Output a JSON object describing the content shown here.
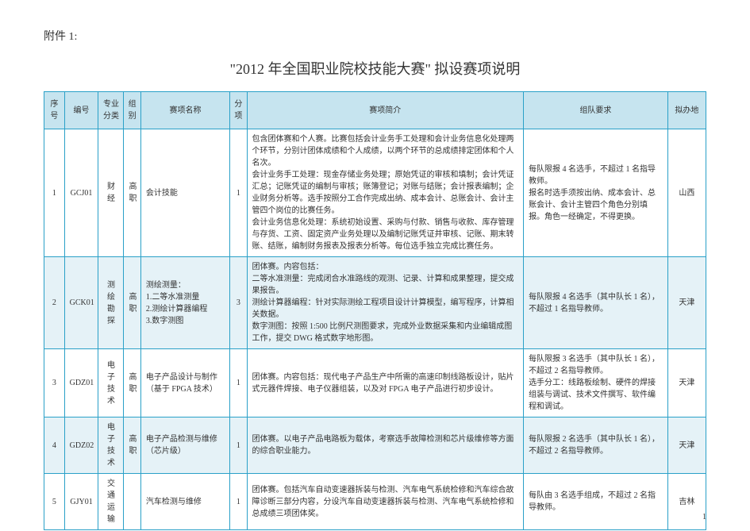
{
  "appendix_label": "附件 1:",
  "main_title": "\"2012 年全国职业院校技能大赛\" 拟设赛项说明",
  "page_number": "1",
  "headers": {
    "seq": "序号",
    "code": "编号",
    "category": "专业分类",
    "group": "组别",
    "name": "赛项名称",
    "sub": "分项",
    "intro": "赛项简介",
    "team": "组队要求",
    "location": "拟办地"
  },
  "rows": [
    {
      "highlight": false,
      "seq": "1",
      "code": "GCJ01",
      "category": "财经",
      "group": "高职",
      "name": "会计技能",
      "sub": "1",
      "intro": "包含团体赛和个人赛。比赛包括会计业务手工处理和会计业务信息化处理两个环节，分别计团体成绩和个人成绩，以两个环节的总成绩排定团体和个人名次。\n会计业务手工处理：现金存储业务处理；原始凭证的审核和填制；会计凭证汇总；记账凭证的编制与审核；账簿登记；对账与结账；会计报表编制；企业财务分析等。选手按照分工合作完成出纳、成本会计、总账会计、会计主管四个岗位的比赛任务。\n会计业务信息化处理：系统初始设置、采购与付款、销售与收款、库存管理与存货、工资、固定资产业务处理以及编制记账凭证并审核、记账、期末转账、结账，编制财务报表及报表分析等。每位选手独立完成比赛任务。",
      "team": "每队限报 4 名选手，不超过 1 名指导教师。\n报名时选手须按出纳、成本会计、总账会计、会计主管四个角色分别填报。角色一经确定，不得更换。",
      "location": "山西"
    },
    {
      "highlight": true,
      "seq": "2",
      "code": "GCK01",
      "category": "测绘勘探",
      "group": "高职",
      "name": "测绘测量：\n1.二等水准测量\n2.测绘计算器编程\n3.数字测图",
      "sub": "3",
      "intro": "团体赛。内容包括：\n二等水准测量：完成闭合水准路线的观测、记录、计算和成果整理，提交成果报告。\n测绘计算器编程：针对实际测绘工程项目设计计算模型，编写程序，计算相关数据。\n数字测图：按照 1:500 比例尺测图要求，完成外业数据采集和内业编辑成图工作，提交 DWG 格式数字地形图。",
      "team": "每队限报 4 名选手（其中队长 1 名），不超过 1 名指导教师。",
      "location": "天津"
    },
    {
      "highlight": false,
      "seq": "3",
      "code": "GDZ01",
      "category": "电子技术",
      "group": "高职",
      "name": "电子产品设计与制作（基于 FPGA 技术）",
      "sub": "1",
      "intro": "团体赛。内容包括：现代电子产品生产中所需的高速印制线路板设计，贴片式元器件焊接、电子仪器组装，以及对 FPGA 电子产品进行初步设计。",
      "team": "每队限报 3 名选手（其中队长 1 名），不超过 2 名指导教师。\n选手分工：线路板绘制、硬件的焊接组装与调试、技术文件撰写、软件编程和调试。",
      "location": "天津"
    },
    {
      "highlight": true,
      "seq": "4",
      "code": "GDZ02",
      "category": "电子技术",
      "group": "高职",
      "name": "电子产品检测与维修（芯片级）",
      "sub": "1",
      "intro": "团体赛。以电子产品电路板为载体，考察选手故障检测和芯片级维修等方面的综合职业能力。",
      "team": "每队限报 2 名选手（其中队长 1 名），不超过 2 名指导教师。",
      "location": "天津"
    },
    {
      "highlight": false,
      "seq": "5",
      "code": "GJY01",
      "category": "交通运输",
      "group": "",
      "name": "汽车检测与维修",
      "sub": "1",
      "intro": "团体赛。包括汽车自动变速器拆装与检测、汽车电气系统检修和汽车综合故障诊断三部分内容，分设汽车自动变速器拆装与检测、汽车电气系统检修和总成绩三项团体奖。",
      "team": "每队由 3 名选手组成，不超过 2 名指导教师。",
      "location": "吉林"
    }
  ]
}
